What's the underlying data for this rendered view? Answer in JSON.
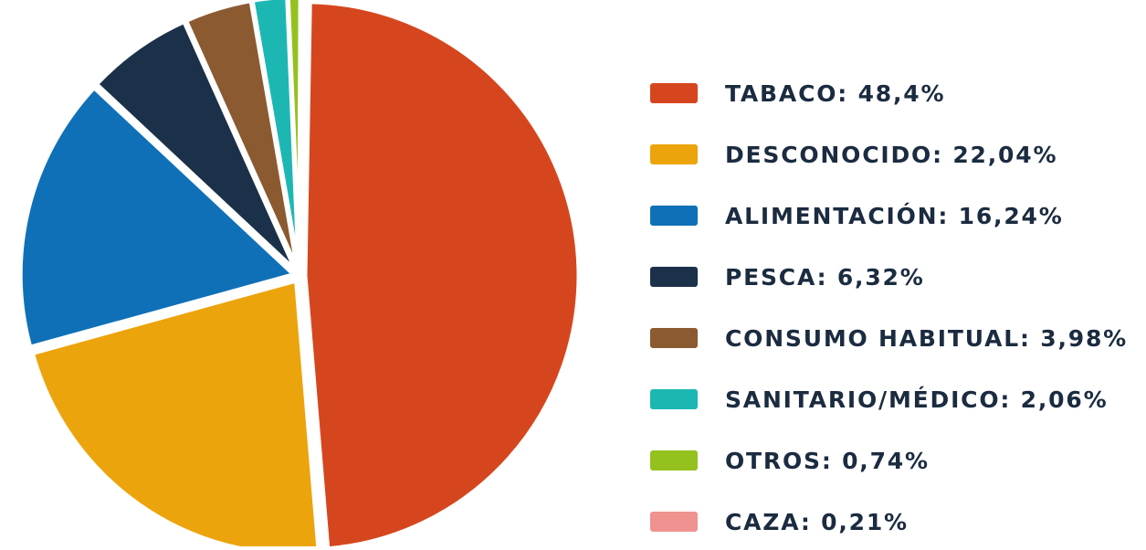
{
  "chart_data": {
    "type": "pie",
    "title": "",
    "slices": [
      {
        "label": "TABACO: 48,4%",
        "value": 48.4,
        "color": "#d6461e"
      },
      {
        "label": "DESCONOCIDO: 22,04%",
        "value": 22.04,
        "color": "#eca40c"
      },
      {
        "label": "ALIMENTACIÓN: 16,24%",
        "value": 16.24,
        "color": "#0f70b7"
      },
      {
        "label": "PESCA: 6,32%",
        "value": 6.32,
        "color": "#1b3049"
      },
      {
        "label": "CONSUMO HABITUAL: 3,98%",
        "value": 3.98,
        "color": "#8b5a31"
      },
      {
        "label": "SANITARIO/MÉDICO: 2,06%",
        "value": 2.06,
        "color": "#1db7b3"
      },
      {
        "label": "OTROS: 0,74%",
        "value": 0.74,
        "color": "#95c11f"
      },
      {
        "label": "CAZA: 0,21%",
        "value": 0.21,
        "color": "#f0928f"
      }
    ],
    "legend_position": "right",
    "label_color": "#1b2b40"
  }
}
